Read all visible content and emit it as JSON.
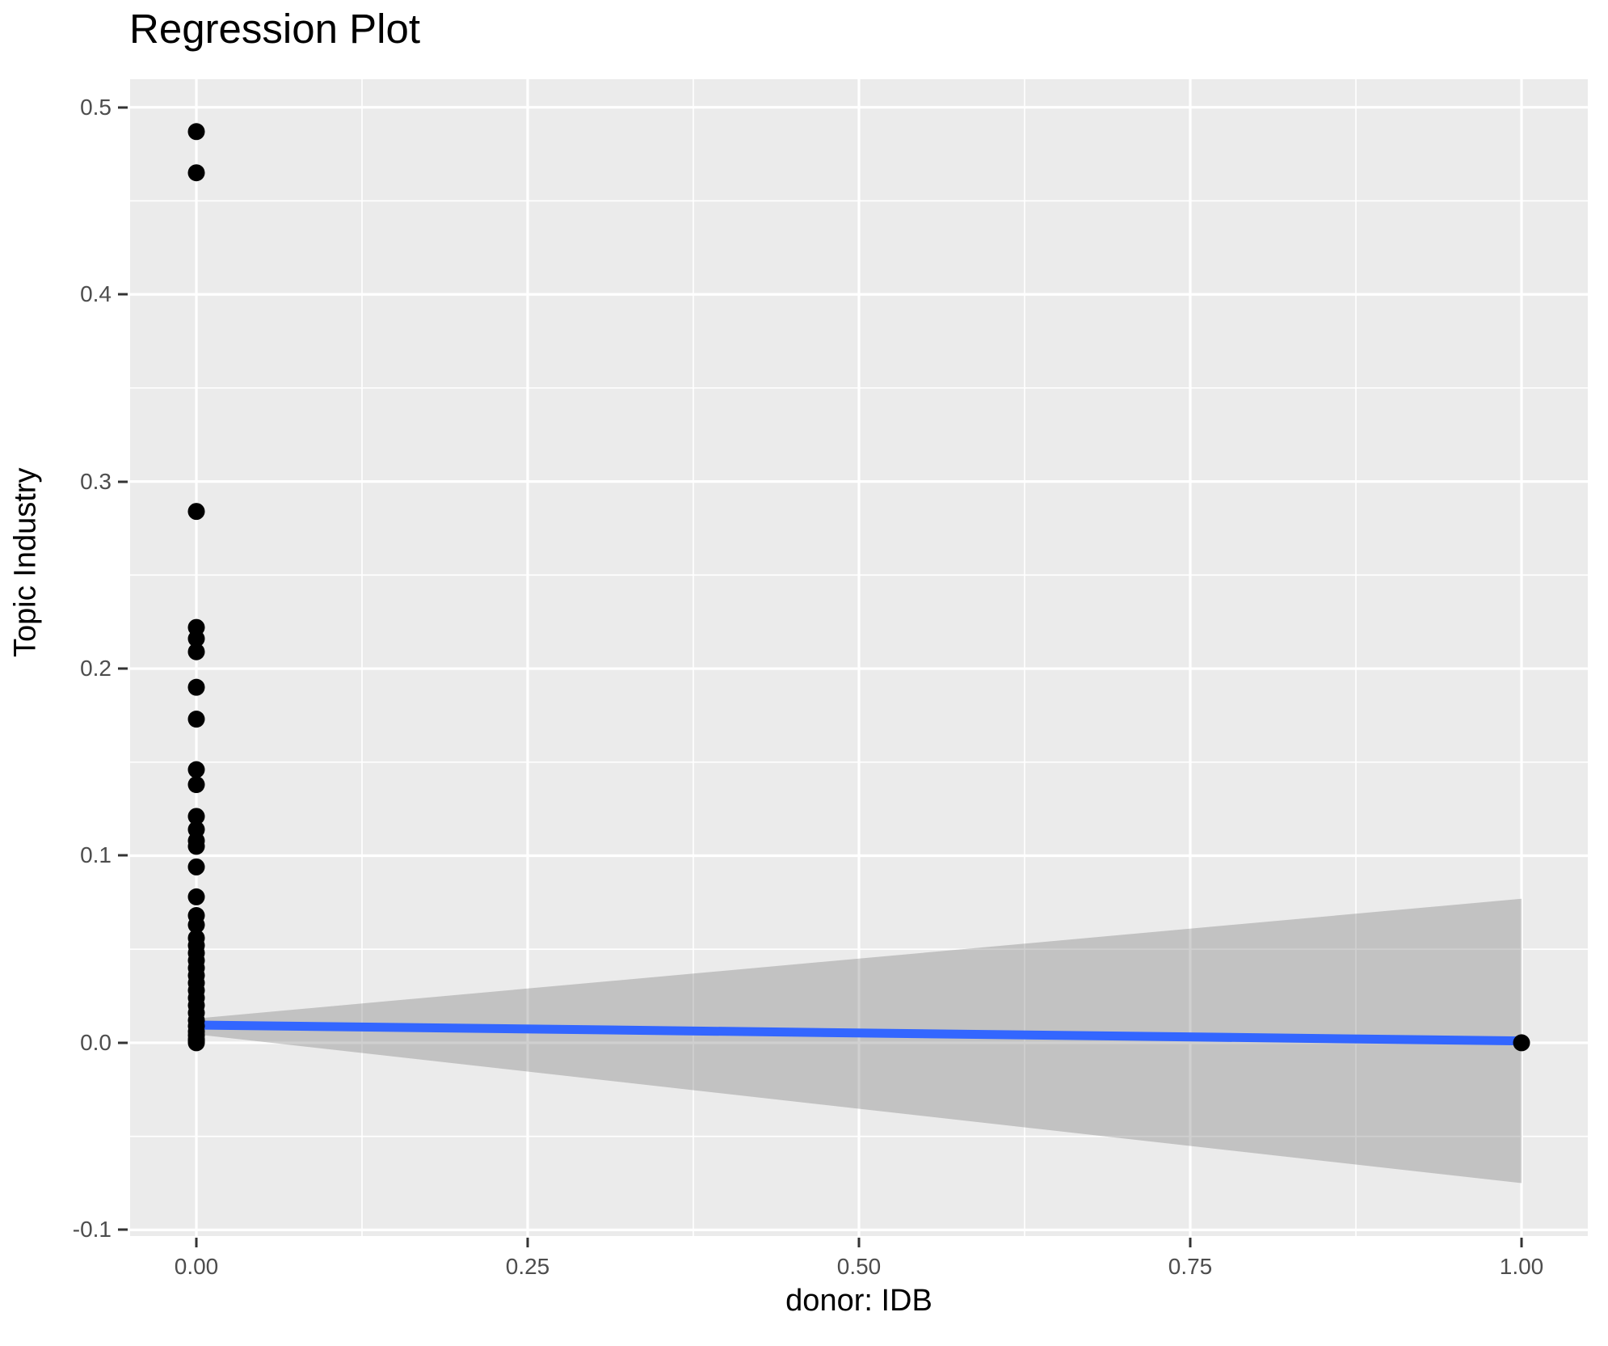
{
  "title": "Regression Plot",
  "chart_data": {
    "type": "scatter",
    "title": "Regression Plot",
    "xlabel": "donor: IDB",
    "ylabel": "Topic Industry",
    "xlim": [
      -0.05,
      1.05
    ],
    "ylim": [
      -0.1033,
      0.515
    ],
    "x_major_ticks": [
      0.0,
      0.25,
      0.5,
      0.75,
      1.0
    ],
    "x_tick_labels": [
      "0.00",
      "0.25",
      "0.50",
      "0.75",
      "1.00"
    ],
    "x_minor_ticks": [
      0.125,
      0.375,
      0.625,
      0.875
    ],
    "y_major_ticks": [
      -0.1,
      0.0,
      0.1,
      0.2,
      0.3,
      0.4,
      0.5
    ],
    "y_tick_labels": [
      "-0.1",
      "0.0",
      "0.1",
      "0.2",
      "0.3",
      "0.4",
      "0.5"
    ],
    "y_minor_ticks": [
      -0.05,
      0.05,
      0.15,
      0.25,
      0.35,
      0.45
    ],
    "grid": "on",
    "legend": "none",
    "series": [
      {
        "name": "confidence-band",
        "type": "band",
        "x": [
          0.0,
          1.0
        ],
        "y_upper": [
          0.013,
          0.077
        ],
        "y_lower": [
          0.0045,
          -0.075
        ]
      },
      {
        "name": "regression-line",
        "type": "line",
        "x": [
          0.0,
          1.0
        ],
        "y": [
          0.0095,
          0.001
        ]
      },
      {
        "name": "observations",
        "type": "points",
        "points": [
          [
            0,
            0.487
          ],
          [
            0,
            0.465
          ],
          [
            0,
            0.284
          ],
          [
            0,
            0.222
          ],
          [
            0,
            0.216
          ],
          [
            0,
            0.209
          ],
          [
            0,
            0.19
          ],
          [
            0,
            0.173
          ],
          [
            0,
            0.146
          ],
          [
            0,
            0.138
          ],
          [
            0,
            0.121
          ],
          [
            0,
            0.114
          ],
          [
            0,
            0.108
          ],
          [
            0,
            0.105
          ],
          [
            0,
            0.094
          ],
          [
            0,
            0.078
          ],
          [
            0,
            0.068
          ],
          [
            0,
            0.063
          ],
          [
            0,
            0.056
          ],
          [
            0,
            0.052
          ],
          [
            0,
            0.048
          ],
          [
            0,
            0.044
          ],
          [
            0,
            0.04
          ],
          [
            0,
            0.036
          ],
          [
            0,
            0.032
          ],
          [
            0,
            0.028
          ],
          [
            0,
            0.024
          ],
          [
            0,
            0.02
          ],
          [
            0,
            0.016
          ],
          [
            0,
            0.012
          ],
          [
            0,
            0.009
          ],
          [
            0,
            0.006
          ],
          [
            0,
            0.004
          ],
          [
            0,
            0.002
          ],
          [
            0,
            0.001
          ],
          [
            0,
            0.0
          ],
          [
            1,
            0.0
          ]
        ]
      }
    ],
    "colors": {
      "point": "#000000",
      "line": "#3366FF",
      "band": "#6E6E6E",
      "band_alpha": 0.32,
      "panel_bg": "#EBEBEB",
      "grid": "#FFFFFF",
      "tick": "#333333",
      "tick_label": "#4D4D4D",
      "title": "#000000",
      "axis_title": "#000000"
    },
    "style": {
      "point_radius": 10.5,
      "line_width": 11,
      "grid_major_width": 3.2,
      "grid_minor_width": 1.6
    }
  }
}
